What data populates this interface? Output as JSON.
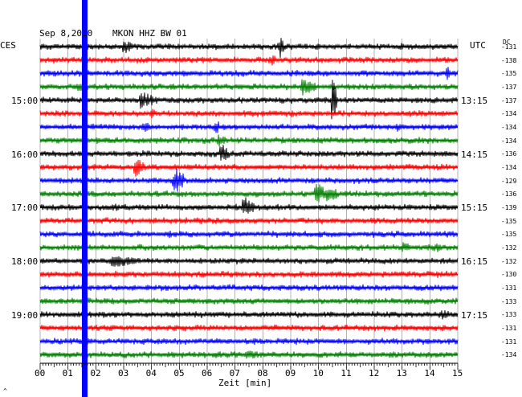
{
  "header": {
    "date": "Sep 8,2010",
    "station": "MKON HHZ BW 01",
    "left_timezone": "CES",
    "right_timezone": "UTC",
    "dc_label": "DC"
  },
  "left_time_labels": [
    "15:00",
    "16:00",
    "17:00",
    "18:00",
    "19:00"
  ],
  "right_time_labels": [
    "13:15",
    "14:15",
    "15:15",
    "16:15",
    "17:15"
  ],
  "x_axis": {
    "ticks": [
      "00",
      "01",
      "02",
      "03",
      "04",
      "05",
      "06",
      "07",
      "08",
      "09",
      "10",
      "11",
      "12",
      "13",
      "14",
      "15"
    ],
    "label": "Zeit [min]"
  },
  "dc_values": [
    "-131",
    "-138",
    "-135",
    "-137",
    "-137",
    "-134",
    "-134",
    "-134",
    "-136",
    "-134",
    "-129",
    "-136",
    "-139",
    "-135",
    "-135",
    "-132",
    "-132",
    "-130",
    "-131",
    "-133",
    "-133",
    "-131",
    "-131",
    "-134"
  ],
  "corner_mark": "^",
  "colors": {
    "black": "#000000",
    "red": "#ff0000",
    "blue": "#0000ff",
    "green": "#008000",
    "grid": "#808080"
  },
  "traces": {
    "color_cycle": [
      "black",
      "red",
      "blue",
      "green"
    ],
    "noise_level": 0.2,
    "events": [
      {
        "row": 0,
        "minute": 3.0,
        "amplitude": 0.9,
        "duration": 0.3
      },
      {
        "row": 0,
        "minute": 8.6,
        "amplitude": 1.6,
        "duration": 0.15
      },
      {
        "row": 1,
        "minute": 8.3,
        "amplitude": 0.8,
        "duration": 0.2
      },
      {
        "row": 2,
        "minute": 14.6,
        "amplitude": 0.9,
        "duration": 0.2
      },
      {
        "row": 3,
        "minute": 1.4,
        "amplitude": 0.7,
        "duration": 0.3
      },
      {
        "row": 3,
        "minute": 9.4,
        "amplitude": 1.1,
        "duration": 0.5
      },
      {
        "row": 4,
        "minute": 3.6,
        "amplitude": 1.0,
        "duration": 0.6
      },
      {
        "row": 4,
        "minute": 10.5,
        "amplitude": 3.0,
        "duration": 0.15
      },
      {
        "row": 5,
        "minute": 4.0,
        "amplitude": 0.6,
        "duration": 0.2
      },
      {
        "row": 6,
        "minute": 3.7,
        "amplitude": 1.0,
        "duration": 0.2
      },
      {
        "row": 6,
        "minute": 6.3,
        "amplitude": 0.9,
        "duration": 0.2
      },
      {
        "row": 6,
        "minute": 12.8,
        "amplitude": 0.7,
        "duration": 0.3
      },
      {
        "row": 7,
        "minute": 6.4,
        "amplitude": 0.8,
        "duration": 0.3
      },
      {
        "row": 8,
        "minute": 6.5,
        "amplitude": 1.2,
        "duration": 0.3
      },
      {
        "row": 9,
        "minute": 3.4,
        "amplitude": 1.2,
        "duration": 0.4
      },
      {
        "row": 10,
        "minute": 4.8,
        "amplitude": 1.6,
        "duration": 0.4
      },
      {
        "row": 11,
        "minute": 9.9,
        "amplitude": 1.2,
        "duration": 0.8
      },
      {
        "row": 12,
        "minute": 7.3,
        "amplitude": 1.3,
        "duration": 0.5
      },
      {
        "row": 12,
        "minute": 2.6,
        "amplitude": 0.6,
        "duration": 0.3
      },
      {
        "row": 14,
        "minute": 4.6,
        "amplitude": 0.5,
        "duration": 0.3
      },
      {
        "row": 15,
        "minute": 13.0,
        "amplitude": 0.7,
        "duration": 0.4
      },
      {
        "row": 15,
        "minute": 14.2,
        "amplitude": 0.6,
        "duration": 0.3
      },
      {
        "row": 16,
        "minute": 2.6,
        "amplitude": 0.8,
        "duration": 0.9
      },
      {
        "row": 19,
        "minute": 10.6,
        "amplitude": 0.6,
        "duration": 0.1
      },
      {
        "row": 20,
        "minute": 14.4,
        "amplitude": 0.6,
        "duration": 0.5
      },
      {
        "row": 23,
        "minute": 7.4,
        "amplitude": 0.5,
        "duration": 1.0
      }
    ],
    "spike_minute": 1.6
  }
}
